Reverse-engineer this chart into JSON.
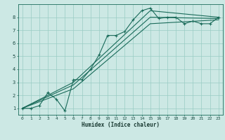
{
  "title": "",
  "xlabel": "Humidex (Indice chaleur)",
  "bg_color": "#cce8e4",
  "grid_color": "#99ccc4",
  "line_color": "#1a6b5a",
  "xlim": [
    -0.5,
    23.5
  ],
  "ylim": [
    0.5,
    9.0
  ],
  "xticks": [
    0,
    1,
    2,
    3,
    4,
    5,
    6,
    7,
    8,
    9,
    10,
    11,
    12,
    13,
    14,
    15,
    16,
    17,
    18,
    19,
    20,
    21,
    22,
    23
  ],
  "yticks": [
    1,
    2,
    3,
    4,
    5,
    6,
    7,
    8
  ],
  "line1_x": [
    0,
    1,
    2,
    3,
    4,
    5,
    6,
    7,
    8,
    9,
    10,
    11,
    12,
    13,
    14,
    15,
    16,
    17,
    18,
    19,
    20,
    21,
    22,
    23
  ],
  "line1_y": [
    1,
    1,
    1.2,
    2.2,
    1.7,
    0.8,
    3.2,
    3.2,
    4.0,
    5.1,
    6.6,
    6.6,
    6.9,
    7.8,
    8.5,
    8.7,
    7.9,
    8.0,
    8.0,
    7.5,
    7.7,
    7.5,
    7.5,
    8.0
  ],
  "line2_x": [
    0,
    6,
    15,
    23
  ],
  "line2_y": [
    1,
    3.0,
    8.5,
    8.0
  ],
  "line3_x": [
    0,
    6,
    15,
    23
  ],
  "line3_y": [
    1,
    2.8,
    8.0,
    7.9
  ],
  "line4_x": [
    0,
    6,
    15,
    23
  ],
  "line4_y": [
    1,
    2.5,
    7.5,
    7.8
  ]
}
